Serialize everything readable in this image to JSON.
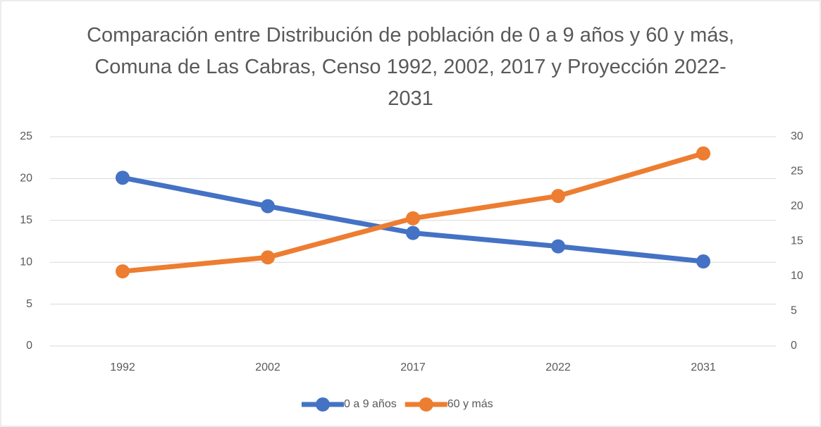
{
  "chart_data": {
    "type": "line",
    "title": "Comparación entre Distribución de población de 0 a 9 años y 60 y más, Comuna de Las Cabras, Censo 1992, 2002, 2017 y Proyección 2022-2031",
    "categories": [
      "1992",
      "2002",
      "2017",
      "2022",
      "2031"
    ],
    "series": [
      {
        "name": "0 a 9 años",
        "color": "#4472c4",
        "values": [
          20.1,
          16.7,
          13.5,
          11.9,
          10.1
        ]
      },
      {
        "name": "60 y más",
        "color": "#ed7d31",
        "axis": "y2",
        "values": [
          10.7,
          12.7,
          18.3,
          21.5,
          27.6
        ]
      }
    ],
    "ylim": [
      0,
      25
    ],
    "yticks": [
      0,
      5,
      10,
      15,
      20,
      25
    ],
    "y2lim": [
      0,
      30
    ],
    "y2ticks": [
      0,
      5,
      10,
      15,
      20,
      25,
      30
    ],
    "grid": true,
    "legend": "bottom"
  }
}
